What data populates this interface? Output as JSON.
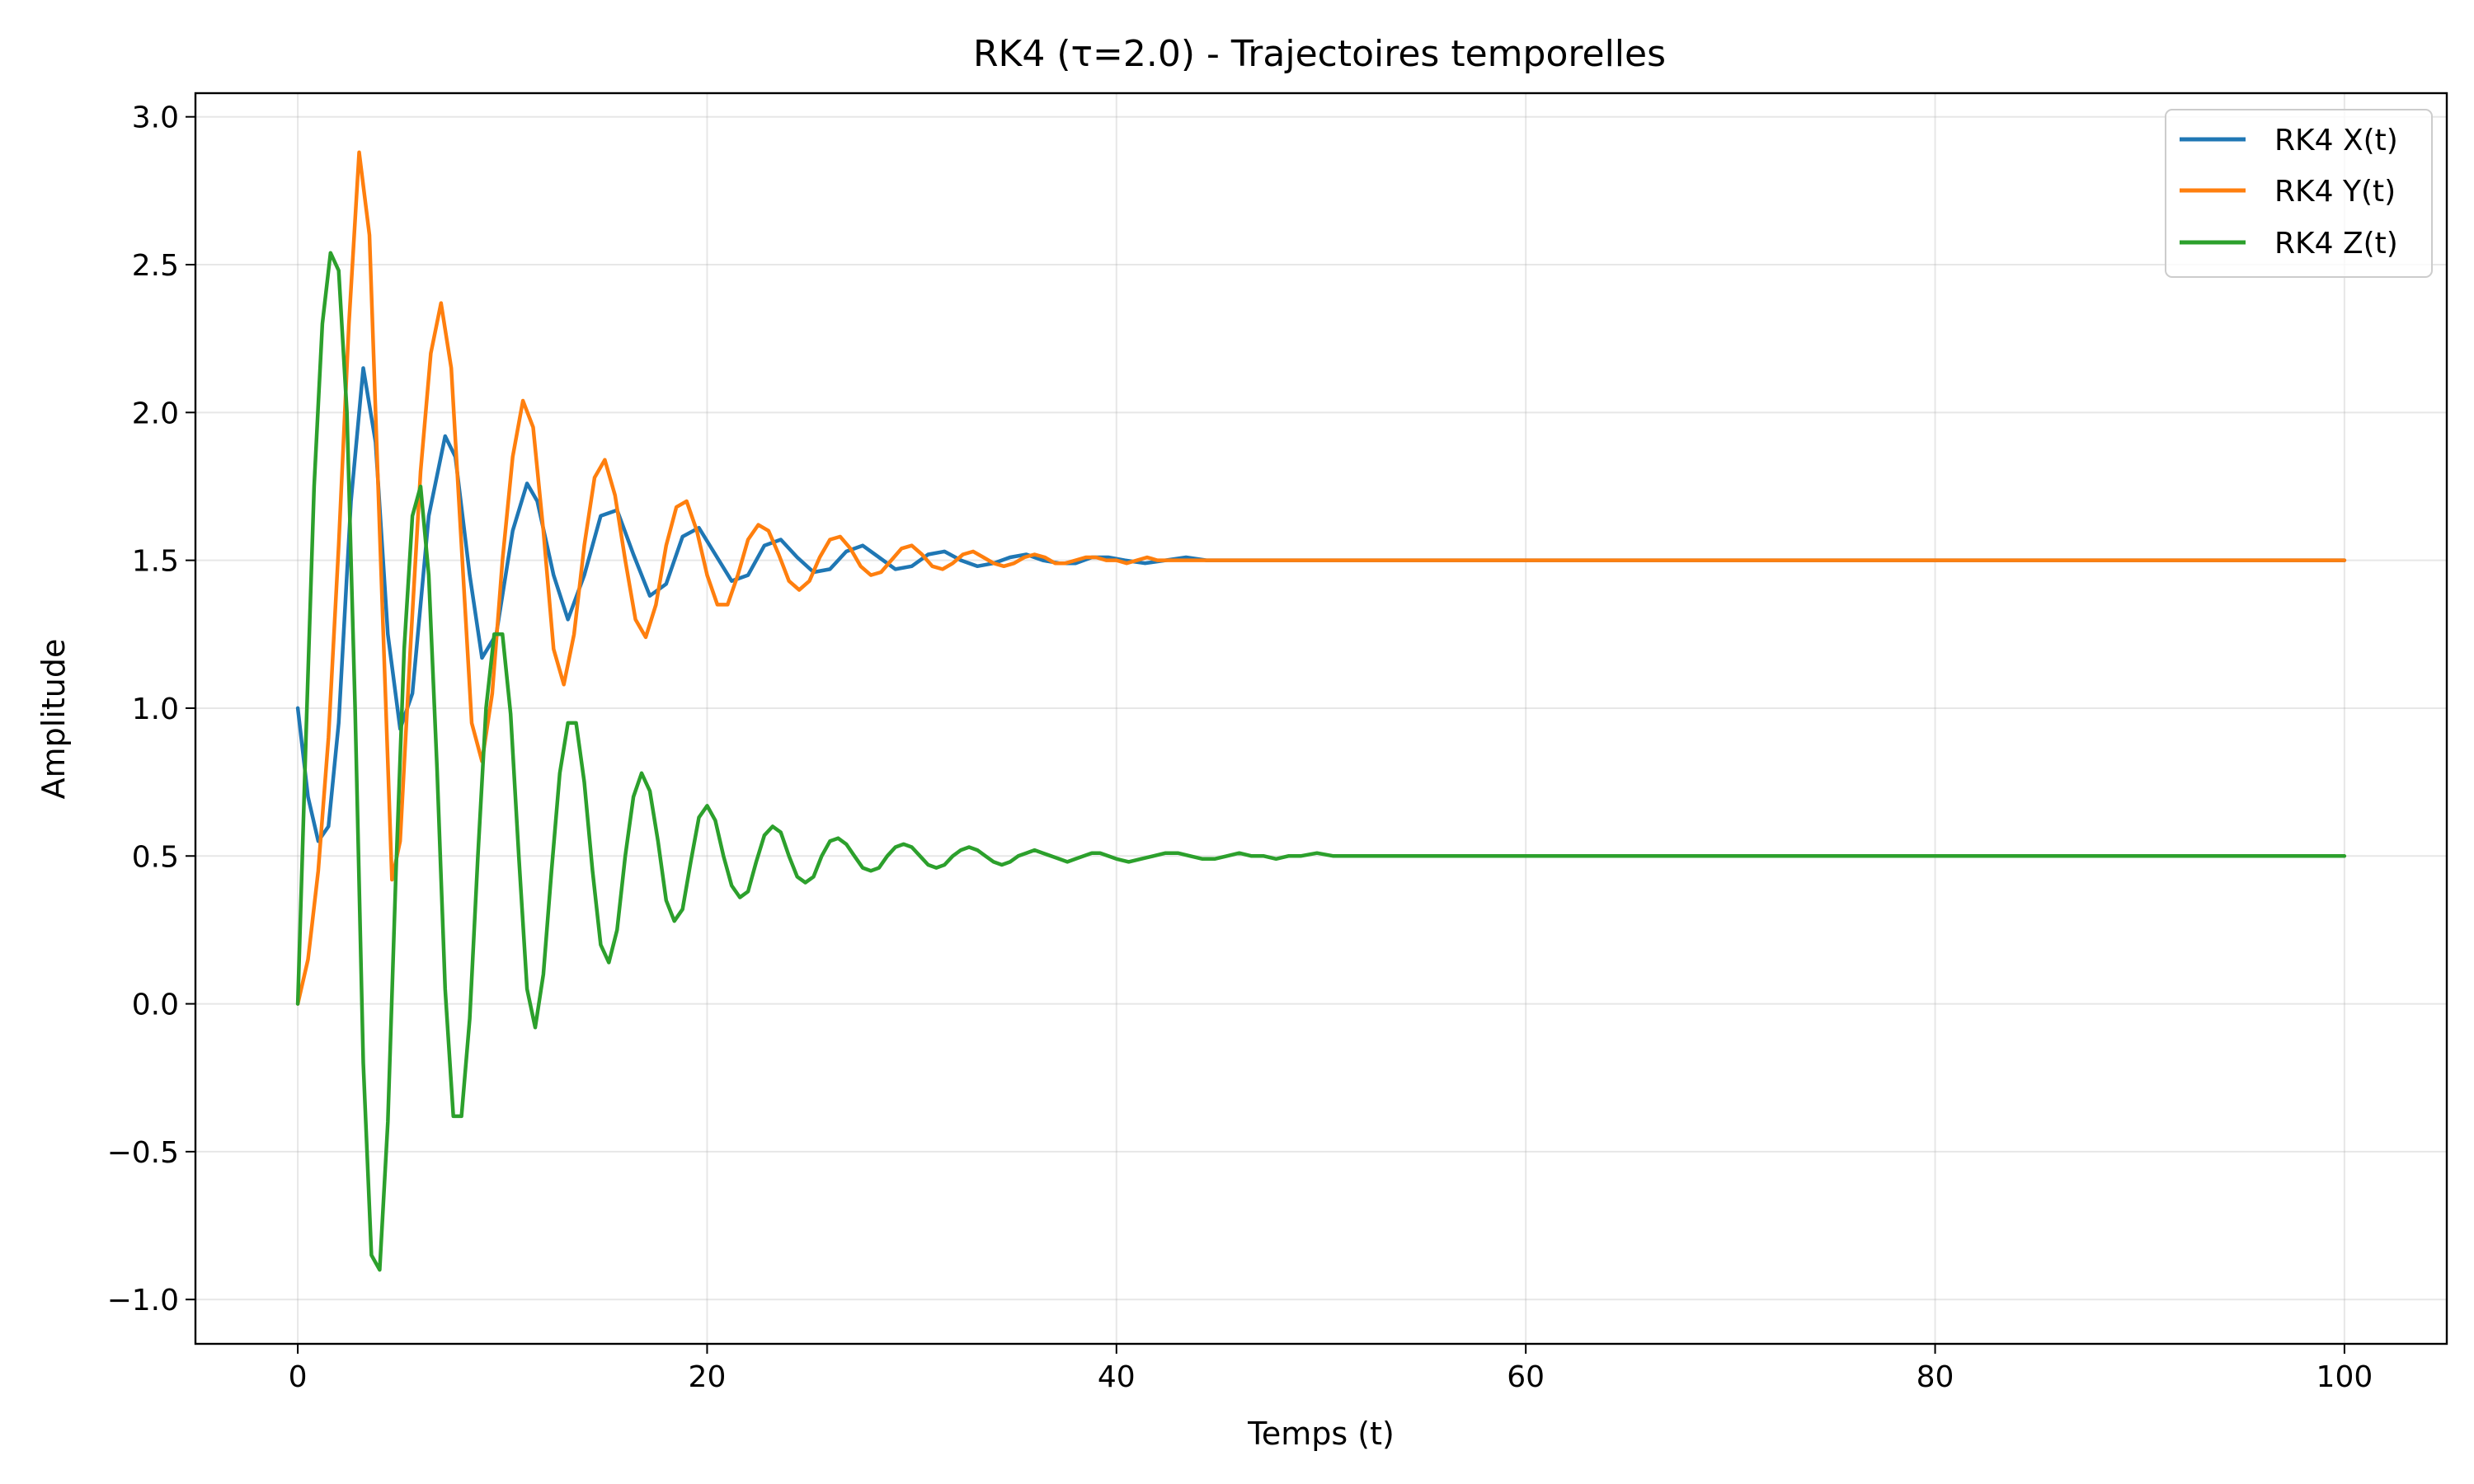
{
  "chart_data": {
    "type": "line",
    "title": "RK4 (τ=2.0) - Trajectoires temporelles",
    "xlabel": "Temps (t)",
    "ylabel": "Amplitude",
    "xlim": [
      -5,
      105
    ],
    "ylim": [
      -1.15,
      3.08
    ],
    "grid": true,
    "legend_position": "top-right",
    "x_ticks": [
      0,
      20,
      40,
      60,
      80,
      100
    ],
    "x_tick_labels": [
      "0",
      "20",
      "40",
      "60",
      "80",
      "100"
    ],
    "y_ticks": [
      -1.0,
      -0.5,
      0.0,
      0.5,
      1.0,
      1.5,
      2.0,
      2.5,
      3.0
    ],
    "y_tick_labels": [
      "−1.0",
      "−0.5",
      "0.0",
      "0.5",
      "1.0",
      "1.5",
      "2.0",
      "2.5",
      "3.0"
    ],
    "series": [
      {
        "name": "RK4 X(t)",
        "color": "#1f77b4",
        "x": [
          0,
          0.5,
          1.0,
          1.5,
          2.0,
          2.6,
          3.2,
          3.8,
          4.4,
          5.0,
          5.6,
          6.4,
          7.2,
          7.7,
          8.4,
          9.0,
          9.7,
          10.5,
          11.2,
          11.7,
          12.5,
          13.2,
          14.0,
          14.8,
          15.6,
          16.4,
          17.2,
          18.0,
          18.8,
          19.6,
          20.4,
          21.2,
          22.0,
          22.8,
          23.6,
          24.4,
          25.2,
          26.0,
          26.8,
          27.6,
          28.4,
          29.2,
          30.0,
          30.8,
          31.6,
          32.4,
          33.2,
          34.0,
          34.8,
          35.6,
          36.4,
          37.2,
          38.0,
          38.8,
          39.6,
          40.4,
          41.4,
          42.4,
          43.4,
          44.4,
          45.4,
          46.4,
          47.4,
          48.4,
          49.6,
          50.8,
          52.0,
          54.0,
          56.0,
          60.0,
          70.0,
          80.0,
          90.0,
          100.0
        ],
        "y": [
          1.0,
          0.7,
          0.55,
          0.6,
          0.95,
          1.7,
          2.15,
          1.9,
          1.25,
          0.93,
          1.05,
          1.65,
          1.92,
          1.85,
          1.45,
          1.17,
          1.25,
          1.6,
          1.76,
          1.7,
          1.45,
          1.3,
          1.45,
          1.65,
          1.67,
          1.52,
          1.38,
          1.42,
          1.58,
          1.61,
          1.52,
          1.43,
          1.45,
          1.55,
          1.57,
          1.51,
          1.46,
          1.47,
          1.53,
          1.55,
          1.51,
          1.47,
          1.48,
          1.52,
          1.53,
          1.5,
          1.48,
          1.49,
          1.51,
          1.52,
          1.5,
          1.49,
          1.49,
          1.51,
          1.51,
          1.5,
          1.49,
          1.5,
          1.51,
          1.5,
          1.5,
          1.5,
          1.5,
          1.5,
          1.5,
          1.5,
          1.5,
          1.5,
          1.5,
          1.5,
          1.5,
          1.5,
          1.5,
          1.5
        ]
      },
      {
        "name": "RK4 Y(t)",
        "color": "#ff7f0e",
        "x": [
          0,
          0.5,
          1.0,
          1.5,
          2.0,
          2.5,
          3.0,
          3.5,
          4.0,
          4.6,
          5.0,
          5.5,
          6.0,
          6.5,
          7.0,
          7.5,
          8.0,
          8.5,
          9.0,
          9.5,
          10.0,
          10.5,
          11.0,
          11.5,
          12.0,
          12.5,
          13.0,
          13.5,
          14.0,
          14.5,
          15.0,
          15.5,
          16.0,
          16.5,
          17.0,
          17.5,
          18.0,
          18.5,
          19.0,
          19.5,
          20.0,
          20.5,
          21.0,
          21.5,
          22.0,
          22.5,
          23.0,
          23.5,
          24.0,
          24.5,
          25.0,
          25.5,
          26.0,
          26.5,
          27.0,
          27.5,
          28.0,
          28.5,
          29.0,
          29.5,
          30.0,
          30.5,
          31.0,
          31.5,
          32.0,
          32.5,
          33.0,
          33.5,
          34.0,
          34.5,
          35.0,
          35.5,
          36.0,
          36.5,
          37.0,
          37.5,
          38.0,
          38.5,
          39.0,
          39.5,
          40.0,
          40.5,
          41.0,
          41.5,
          42.0,
          42.5,
          43.0,
          43.5,
          44.0,
          45.0,
          46.0,
          47.0,
          48.0,
          49.0,
          50.0,
          51.0,
          52.0,
          53.0,
          54.0,
          55.0,
          56.0,
          58.0,
          60.0,
          70.0,
          80.0,
          90.0,
          100.0
        ],
        "y": [
          0.0,
          0.15,
          0.45,
          0.9,
          1.55,
          2.3,
          2.88,
          2.6,
          1.6,
          0.42,
          0.55,
          1.2,
          1.8,
          2.2,
          2.37,
          2.15,
          1.55,
          0.95,
          0.82,
          1.05,
          1.5,
          1.85,
          2.04,
          1.95,
          1.6,
          1.2,
          1.08,
          1.25,
          1.55,
          1.78,
          1.84,
          1.72,
          1.5,
          1.3,
          1.24,
          1.35,
          1.55,
          1.68,
          1.7,
          1.6,
          1.45,
          1.35,
          1.35,
          1.45,
          1.57,
          1.62,
          1.6,
          1.52,
          1.43,
          1.4,
          1.43,
          1.51,
          1.57,
          1.58,
          1.54,
          1.48,
          1.45,
          1.46,
          1.5,
          1.54,
          1.55,
          1.52,
          1.48,
          1.47,
          1.49,
          1.52,
          1.53,
          1.51,
          1.49,
          1.48,
          1.49,
          1.51,
          1.52,
          1.51,
          1.49,
          1.49,
          1.5,
          1.51,
          1.51,
          1.5,
          1.5,
          1.49,
          1.5,
          1.51,
          1.5,
          1.5,
          1.5,
          1.5,
          1.5,
          1.5,
          1.5,
          1.5,
          1.5,
          1.5,
          1.5,
          1.5,
          1.5,
          1.5,
          1.5,
          1.5,
          1.5,
          1.5,
          1.5,
          1.5,
          1.5,
          1.5,
          1.5
        ]
      },
      {
        "name": "RK4 Z(t)",
        "color": "#2ca02c",
        "x": [
          0,
          0.4,
          0.8,
          1.2,
          1.6,
          2.0,
          2.4,
          2.8,
          3.2,
          3.6,
          4.0,
          4.4,
          4.8,
          5.2,
          5.6,
          6.0,
          6.4,
          6.8,
          7.2,
          7.6,
          8.0,
          8.4,
          8.8,
          9.2,
          9.6,
          10.0,
          10.4,
          10.8,
          11.2,
          11.6,
          12.0,
          12.4,
          12.8,
          13.2,
          13.6,
          14.0,
          14.4,
          14.8,
          15.2,
          15.6,
          16.0,
          16.4,
          16.8,
          17.2,
          17.6,
          18.0,
          18.4,
          18.8,
          19.2,
          19.6,
          20.0,
          20.4,
          20.8,
          21.2,
          21.6,
          22.0,
          22.4,
          22.8,
          23.2,
          23.6,
          24.0,
          24.4,
          24.8,
          25.2,
          25.6,
          26.0,
          26.4,
          26.8,
          27.2,
          27.6,
          28.0,
          28.4,
          28.8,
          29.2,
          29.6,
          30.0,
          30.4,
          30.8,
          31.2,
          31.6,
          32.0,
          32.4,
          32.8,
          33.2,
          33.6,
          34.0,
          34.4,
          34.8,
          35.2,
          35.6,
          36.0,
          36.4,
          36.8,
          37.2,
          37.6,
          38.0,
          38.4,
          38.8,
          39.2,
          39.6,
          40.0,
          40.6,
          41.2,
          41.8,
          42.4,
          43.0,
          43.6,
          44.2,
          44.8,
          45.4,
          46.0,
          46.6,
          47.2,
          47.8,
          48.4,
          49.0,
          49.8,
          50.6,
          51.4,
          52.2,
          53.0,
          54.0,
          55.0,
          56.0,
          57.0,
          58.0,
          60.0,
          70.0,
          80.0,
          90.0,
          100.0
        ],
        "y": [
          0.0,
          0.9,
          1.75,
          2.3,
          2.54,
          2.48,
          2.0,
          1.0,
          -0.2,
          -0.85,
          -0.9,
          -0.4,
          0.45,
          1.2,
          1.65,
          1.75,
          1.45,
          0.8,
          0.05,
          -0.38,
          -0.38,
          -0.05,
          0.5,
          1.0,
          1.25,
          1.25,
          0.98,
          0.5,
          0.05,
          -0.08,
          0.1,
          0.45,
          0.78,
          0.95,
          0.95,
          0.75,
          0.45,
          0.2,
          0.14,
          0.25,
          0.5,
          0.7,
          0.78,
          0.72,
          0.55,
          0.35,
          0.28,
          0.32,
          0.48,
          0.63,
          0.67,
          0.62,
          0.5,
          0.4,
          0.36,
          0.38,
          0.48,
          0.57,
          0.6,
          0.58,
          0.5,
          0.43,
          0.41,
          0.43,
          0.5,
          0.55,
          0.56,
          0.54,
          0.5,
          0.46,
          0.45,
          0.46,
          0.5,
          0.53,
          0.54,
          0.53,
          0.5,
          0.47,
          0.46,
          0.47,
          0.5,
          0.52,
          0.53,
          0.52,
          0.5,
          0.48,
          0.47,
          0.48,
          0.5,
          0.51,
          0.52,
          0.51,
          0.5,
          0.49,
          0.48,
          0.49,
          0.5,
          0.51,
          0.51,
          0.5,
          0.49,
          0.48,
          0.49,
          0.5,
          0.51,
          0.51,
          0.5,
          0.49,
          0.49,
          0.5,
          0.51,
          0.5,
          0.5,
          0.49,
          0.5,
          0.5,
          0.51,
          0.5,
          0.5,
          0.5,
          0.5,
          0.5,
          0.5,
          0.5,
          0.5,
          0.5,
          0.5,
          0.5,
          0.5,
          0.5,
          0.5
        ]
      }
    ]
  }
}
